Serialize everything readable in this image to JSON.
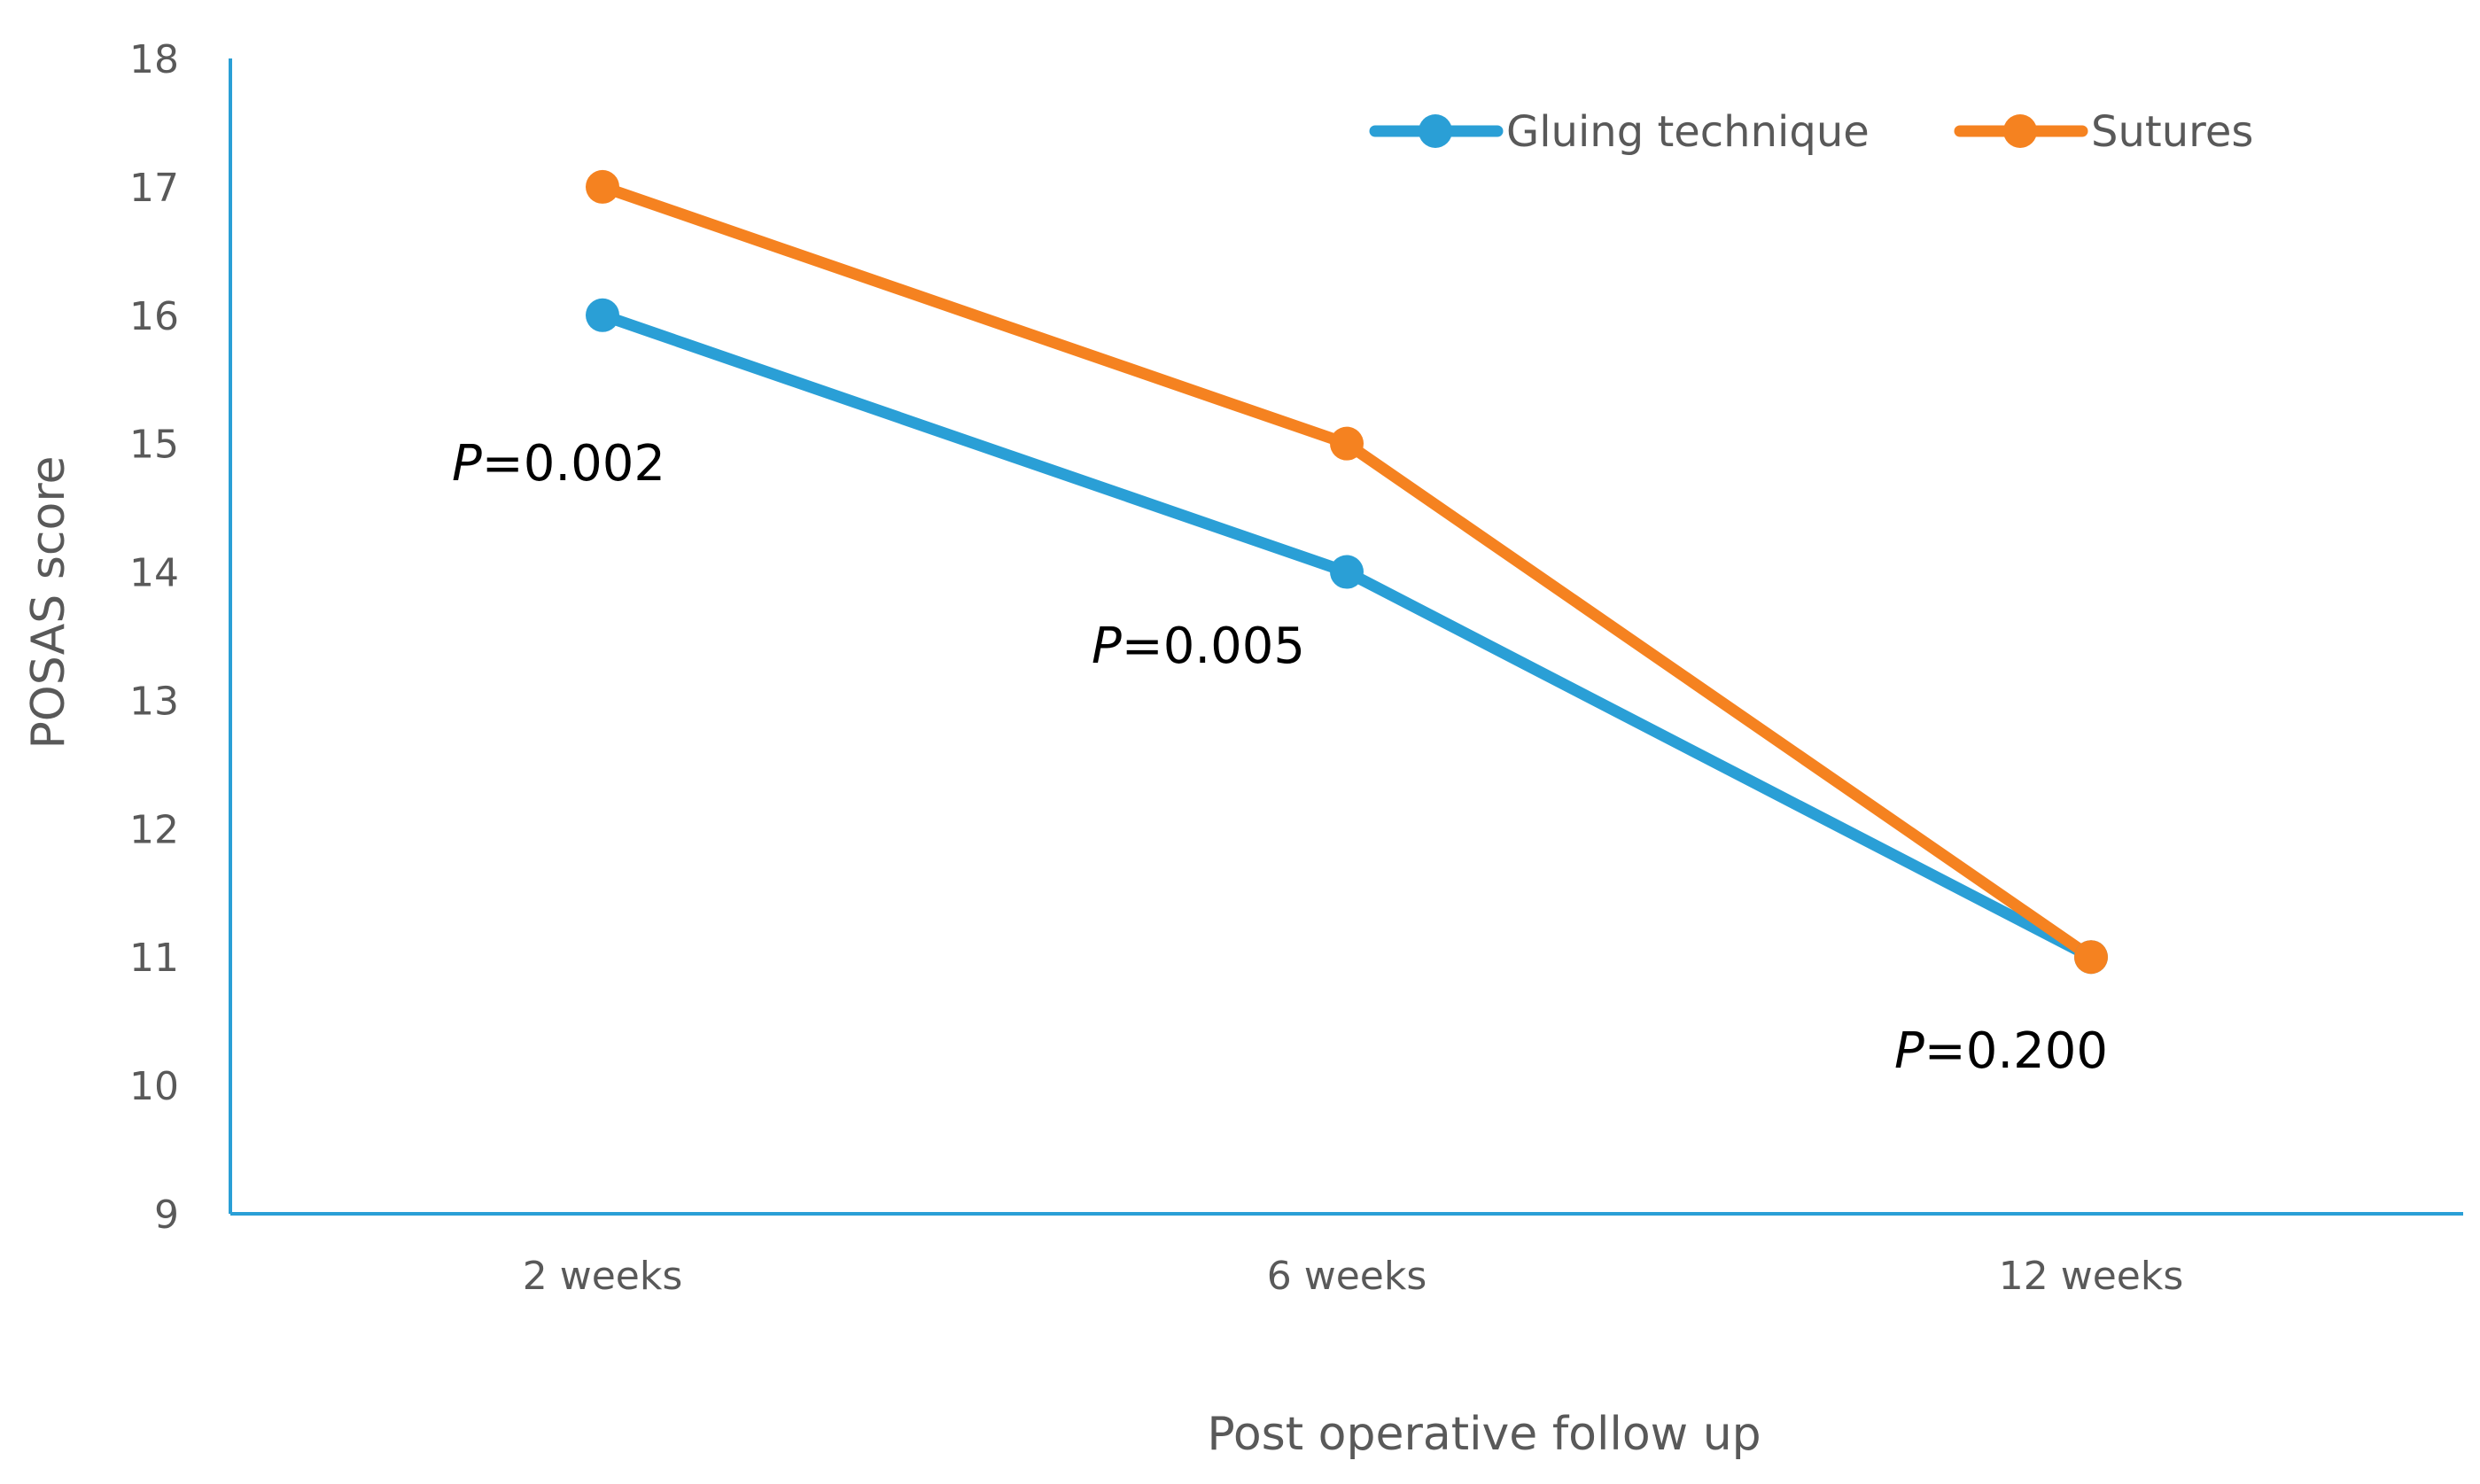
{
  "chart_data": {
    "type": "line",
    "title": "",
    "xlabel": "Post operative follow up",
    "ylabel": "POSAS score",
    "categories": [
      "2 weeks",
      "6 weeks",
      "12 weeks"
    ],
    "ylim": [
      9,
      18
    ],
    "yticks": [
      9,
      10,
      11,
      12,
      13,
      14,
      15,
      16,
      17,
      18
    ],
    "grid": false,
    "legend_position": "top-right",
    "series": [
      {
        "name": "Gluing technique",
        "color": "#2a9fd6",
        "values": [
          16,
          14,
          11
        ]
      },
      {
        "name": "Sutures",
        "color": "#f58220",
        "values": [
          17,
          15,
          11
        ]
      }
    ],
    "annotations": [
      {
        "category": "2 weeks",
        "p_label": "P",
        "value_text": "=0.002"
      },
      {
        "category": "6 weeks",
        "p_label": "P",
        "value_text": "=0.005"
      },
      {
        "category": "12 weeks",
        "p_label": "P",
        "value_text": "=0.200"
      }
    ],
    "axis_color": "#2a9fd6"
  }
}
